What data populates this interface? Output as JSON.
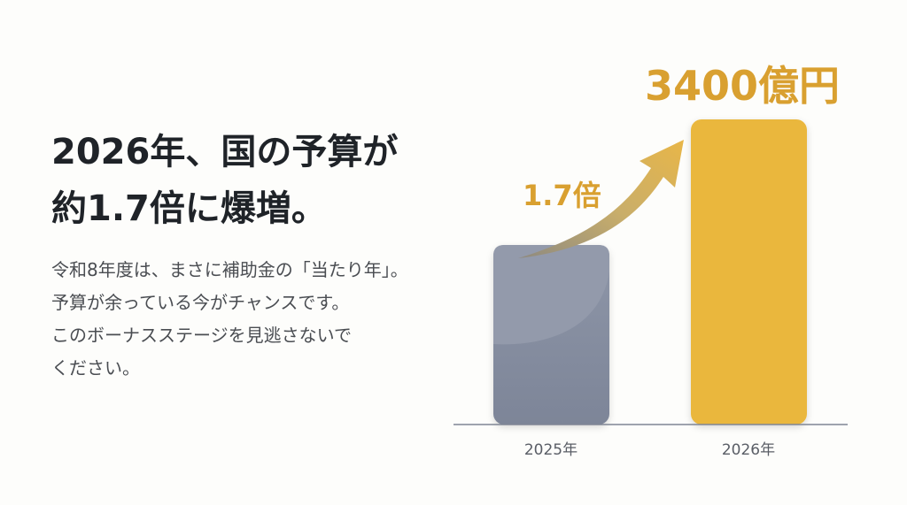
{
  "headline": {
    "line1": "2026年、国の予算が",
    "line2": "約1.7倍に爆増。"
  },
  "body": {
    "lines": [
      "令和8年度は、まさに補助金の「当たり年」。",
      "予算が余っている今がチャンスです。",
      "このボーナスステージを見逃さないで",
      "ください。"
    ]
  },
  "chart_data": {
    "type": "bar",
    "categories": [
      "2025年",
      "2026年"
    ],
    "values": [
      2000,
      3400
    ],
    "value_label": "3400億円",
    "growth_label": "1.7倍",
    "unit": "億円",
    "ylim": [
      0,
      3400
    ],
    "colors": [
      "#8a91a3",
      "#eab73d"
    ],
    "accent": "#d9a030",
    "grid": false
  }
}
